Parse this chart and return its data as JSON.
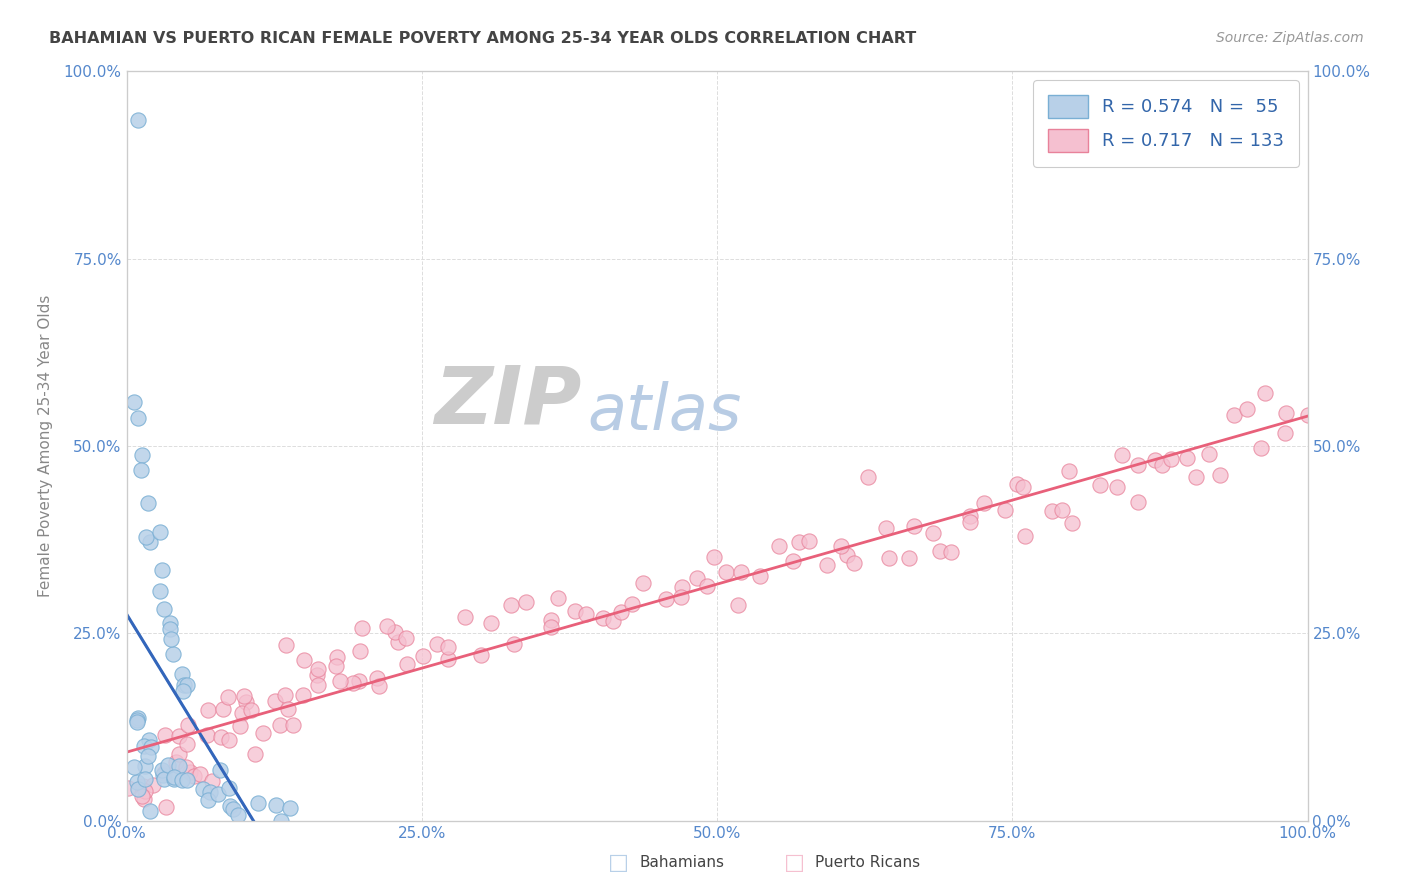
{
  "title": "BAHAMIAN VS PUERTO RICAN FEMALE POVERTY AMONG 25-34 YEAR OLDS CORRELATION CHART",
  "source": "Source: ZipAtlas.com",
  "ylabel": "Female Poverty Among 25-34 Year Olds",
  "xlim": [
    0,
    1
  ],
  "ylim": [
    0,
    1
  ],
  "xticks": [
    0.0,
    0.25,
    0.5,
    0.75,
    1.0
  ],
  "yticks": [
    0.0,
    0.25,
    0.5,
    0.75,
    1.0
  ],
  "xticklabels": [
    "0.0%",
    "25.0%",
    "50.0%",
    "75.0%",
    "100.0%"
  ],
  "yticklabels": [
    "0.0%",
    "25.0%",
    "50.0%",
    "75.0%",
    "100.0%"
  ],
  "bahamian_R": 0.574,
  "bahamian_N": 55,
  "puertorico_R": 0.717,
  "puertorico_N": 133,
  "bahamian_color": "#b8d0e8",
  "bahamian_edge": "#7aafd4",
  "puertorico_color": "#f5c0d0",
  "puertorico_edge": "#e8829a",
  "trend_bahamian_color": "#3366bb",
  "trend_puertorico_color": "#e8607a",
  "watermark_ZIP_color": "#cccccc",
  "watermark_atlas_color": "#b8cce4",
  "title_color": "#444444",
  "axis_label_color": "#888888",
  "tick_color": "#5588cc",
  "legend_text_color": "#3366aa",
  "background_color": "#ffffff",
  "bahamian_x": [
    0.005,
    0.008,
    0.01,
    0.012,
    0.015,
    0.018,
    0.02,
    0.022,
    0.025,
    0.028,
    0.03,
    0.032,
    0.035,
    0.038,
    0.04,
    0.042,
    0.045,
    0.048,
    0.05,
    0.052,
    0.005,
    0.008,
    0.01,
    0.013,
    0.016,
    0.019,
    0.022,
    0.025,
    0.028,
    0.031,
    0.034,
    0.037,
    0.04,
    0.043,
    0.046,
    0.049,
    0.055,
    0.06,
    0.065,
    0.07,
    0.075,
    0.08,
    0.085,
    0.09,
    0.095,
    0.1,
    0.11,
    0.12,
    0.13,
    0.14,
    0.003,
    0.006,
    0.009,
    0.015,
    0.02
  ],
  "bahamian_y": [
    0.94,
    0.58,
    0.53,
    0.49,
    0.45,
    0.43,
    0.4,
    0.38,
    0.36,
    0.34,
    0.32,
    0.3,
    0.28,
    0.26,
    0.24,
    0.22,
    0.2,
    0.18,
    0.16,
    0.15,
    0.14,
    0.13,
    0.12,
    0.11,
    0.1,
    0.09,
    0.085,
    0.08,
    0.075,
    0.07,
    0.065,
    0.06,
    0.055,
    0.05,
    0.048,
    0.046,
    0.044,
    0.042,
    0.04,
    0.038,
    0.036,
    0.034,
    0.03,
    0.025,
    0.022,
    0.02,
    0.018,
    0.015,
    0.012,
    0.01,
    0.06,
    0.05,
    0.04,
    0.03,
    0.02
  ],
  "puertorico_x": [
    0.005,
    0.01,
    0.015,
    0.02,
    0.025,
    0.03,
    0.035,
    0.04,
    0.045,
    0.05,
    0.055,
    0.06,
    0.065,
    0.07,
    0.075,
    0.08,
    0.085,
    0.09,
    0.095,
    0.1,
    0.11,
    0.12,
    0.13,
    0.14,
    0.15,
    0.16,
    0.17,
    0.18,
    0.19,
    0.2,
    0.21,
    0.22,
    0.23,
    0.24,
    0.25,
    0.26,
    0.27,
    0.28,
    0.29,
    0.3,
    0.31,
    0.32,
    0.33,
    0.34,
    0.35,
    0.36,
    0.37,
    0.38,
    0.39,
    0.4,
    0.41,
    0.42,
    0.43,
    0.44,
    0.45,
    0.46,
    0.47,
    0.48,
    0.49,
    0.5,
    0.51,
    0.52,
    0.53,
    0.54,
    0.55,
    0.56,
    0.57,
    0.58,
    0.59,
    0.6,
    0.61,
    0.62,
    0.63,
    0.64,
    0.65,
    0.66,
    0.67,
    0.68,
    0.69,
    0.7,
    0.71,
    0.72,
    0.73,
    0.74,
    0.75,
    0.76,
    0.77,
    0.78,
    0.79,
    0.8,
    0.81,
    0.82,
    0.83,
    0.84,
    0.85,
    0.86,
    0.87,
    0.88,
    0.89,
    0.9,
    0.91,
    0.92,
    0.93,
    0.94,
    0.95,
    0.96,
    0.97,
    0.98,
    0.99,
    1.0,
    0.015,
    0.025,
    0.035,
    0.045,
    0.055,
    0.065,
    0.075,
    0.085,
    0.095,
    0.105,
    0.115,
    0.125,
    0.135,
    0.145,
    0.155,
    0.165,
    0.175,
    0.185,
    0.195,
    0.205,
    0.215,
    0.225,
    0.235
  ],
  "puertorico_y": [
    0.04,
    0.05,
    0.06,
    0.07,
    0.08,
    0.09,
    0.095,
    0.1,
    0.105,
    0.11,
    0.115,
    0.12,
    0.125,
    0.13,
    0.135,
    0.14,
    0.145,
    0.15,
    0.155,
    0.16,
    0.165,
    0.17,
    0.175,
    0.18,
    0.185,
    0.19,
    0.195,
    0.2,
    0.205,
    0.21,
    0.215,
    0.22,
    0.225,
    0.228,
    0.232,
    0.236,
    0.24,
    0.244,
    0.248,
    0.252,
    0.255,
    0.258,
    0.262,
    0.265,
    0.268,
    0.272,
    0.275,
    0.278,
    0.282,
    0.285,
    0.288,
    0.292,
    0.295,
    0.298,
    0.302,
    0.305,
    0.308,
    0.312,
    0.315,
    0.32,
    0.325,
    0.33,
    0.335,
    0.338,
    0.342,
    0.346,
    0.35,
    0.354,
    0.358,
    0.362,
    0.366,
    0.37,
    0.374,
    0.378,
    0.382,
    0.386,
    0.39,
    0.394,
    0.398,
    0.402,
    0.406,
    0.41,
    0.414,
    0.418,
    0.422,
    0.426,
    0.43,
    0.434,
    0.438,
    0.442,
    0.446,
    0.45,
    0.454,
    0.458,
    0.462,
    0.466,
    0.47,
    0.475,
    0.48,
    0.488,
    0.495,
    0.502,
    0.51,
    0.518,
    0.525,
    0.532,
    0.54,
    0.548,
    0.555,
    0.56,
    0.025,
    0.035,
    0.045,
    0.055,
    0.065,
    0.075,
    0.085,
    0.095,
    0.105,
    0.115,
    0.125,
    0.135,
    0.145,
    0.155,
    0.165,
    0.175,
    0.185,
    0.195,
    0.205,
    0.215,
    0.225,
    0.235,
    0.245
  ]
}
